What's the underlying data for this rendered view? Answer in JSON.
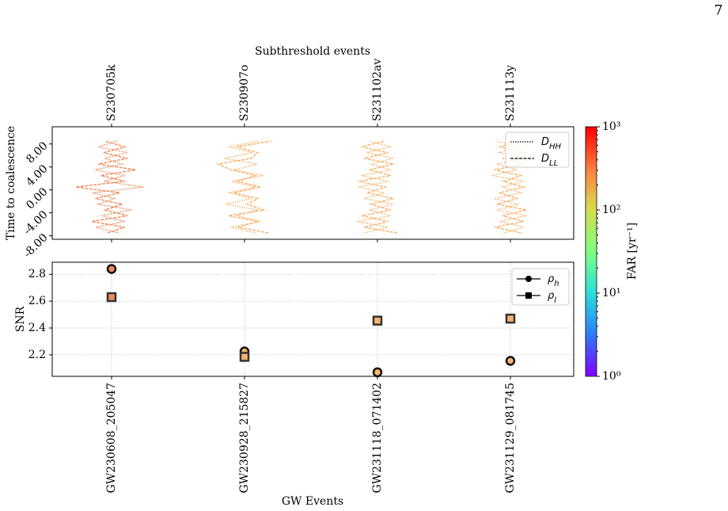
{
  "page_number": "7",
  "chart_data": [
    {
      "type": "line",
      "x_label": "Subthreshold events",
      "y_label": "Time to coalescence",
      "categories": [
        "S230705k",
        "S230907o",
        "S231102av",
        "S231113y"
      ],
      "colors": [
        "#f08a58",
        "#f7b36c",
        "#f7b36c",
        "#f7b36c"
      ],
      "ylim": [
        -8.6,
        11
      ],
      "yticks": [
        {
          "value": 8,
          "label": "8.00"
        },
        {
          "value": 4,
          "label": "4.00"
        },
        {
          "value": 0,
          "label": "0.00"
        },
        {
          "value": -4,
          "label": "-4.00"
        },
        {
          "value": -8,
          "label": "-8.00"
        }
      ],
      "y": [
        -7.5,
        -6.5,
        -5.5,
        -4.5,
        -3.5,
        -2.5,
        -1.5,
        -0.5,
        0.5,
        1.5,
        2.5,
        3.5,
        4.5,
        5.5,
        6.5,
        7.5,
        8.5
      ],
      "legend": "upper right",
      "series": [
        {
          "name": "D",
          "name_sub": "HH",
          "dash": "dotted",
          "values": [
            [
              0.05,
              -0.12,
              0.1,
              -0.08,
              0.15,
              -0.1,
              0.02,
              -0.14,
              0.24,
              -0.06,
              0.1,
              -0.13,
              0.08,
              -0.05,
              0.12,
              -0.1,
              0.04
            ],
            [
              0.08,
              -0.1,
              0.12,
              -0.06,
              0.1,
              -0.14,
              0.05,
              -0.12,
              0.08,
              -0.1,
              0.14,
              -0.08,
              0.1,
              -0.15,
              0.06,
              -0.12,
              0.1
            ],
            [
              -0.1,
              0.08,
              -0.15,
              0.1,
              -0.06,
              0.12,
              -0.1,
              0.05,
              -0.14,
              0.08,
              -0.12,
              0.1,
              -0.05,
              0.12,
              -0.08,
              0.1,
              -0.06
            ],
            [
              -0.05,
              0.1,
              -0.08,
              0.12,
              -0.1,
              0.06,
              -0.12,
              0.08,
              -0.06,
              0.1,
              -0.14,
              0.05,
              -0.1,
              0.12,
              -0.08,
              0.06,
              -0.1
            ]
          ]
        },
        {
          "name": "D",
          "name_sub": "LL",
          "dash": "dashed",
          "values": [
            [
              -0.03,
              0.1,
              -0.15,
              0.12,
              -0.05,
              0.08,
              -0.12,
              0.06,
              -0.27,
              0.1,
              -0.08,
              0.18,
              -0.1,
              0.12,
              -0.06,
              0.1,
              -0.05
            ],
            [
              0.18,
              -0.05,
              0.1,
              -0.12,
              0.15,
              0.02,
              0.1,
              -0.08,
              0.12,
              -0.05,
              0.08,
              -0.1,
              -0.2,
              0.05,
              0.1,
              -0.06,
              0.2
            ],
            [
              0.15,
              -0.1,
              0.08,
              -0.12,
              0.1,
              -0.05,
              0.12,
              -0.08,
              0.06,
              -0.14,
              0.1,
              -0.06,
              0.12,
              -0.1,
              0.08,
              -0.12,
              0.05
            ],
            [
              0.08,
              -0.12,
              0.1,
              -0.06,
              0.12,
              -0.1,
              0.05,
              -0.08,
              0.1,
              -0.05,
              0.08,
              -0.12,
              0.1,
              -0.06,
              0.12,
              -0.08,
              0.05
            ]
          ]
        }
      ]
    },
    {
      "type": "scatter",
      "x_label": "GW Events",
      "y_label": "SNR",
      "categories": [
        "GW230608_205047",
        "GW230928_215827",
        "GW231118_071402",
        "GW231129_081745"
      ],
      "colors": [
        "#f08a58",
        "#f7b36c",
        "#f7b36c",
        "#f7b36c"
      ],
      "ylim": [
        2.04,
        2.89
      ],
      "yticks": [
        2.2,
        2.4,
        2.6,
        2.8
      ],
      "grid": true,
      "legend": "upper right",
      "series": [
        {
          "name": "ρ",
          "name_sub": "h",
          "marker": "circle",
          "values": [
            2.84,
            2.225,
            2.07,
            2.155
          ]
        },
        {
          "name": "ρ",
          "name_sub": "l",
          "marker": "square",
          "values": [
            2.63,
            2.185,
            2.455,
            2.47
          ]
        }
      ],
      "colorbar": {
        "label": "FAR [yr⁻¹]",
        "log": true,
        "lim": [
          1,
          1000
        ],
        "ticks": [
          {
            "value": 1,
            "label": "10⁰"
          },
          {
            "value": 10,
            "label": "10¹"
          },
          {
            "value": 100,
            "label": "10²"
          },
          {
            "value": 1000,
            "label": "10³"
          }
        ]
      }
    }
  ]
}
